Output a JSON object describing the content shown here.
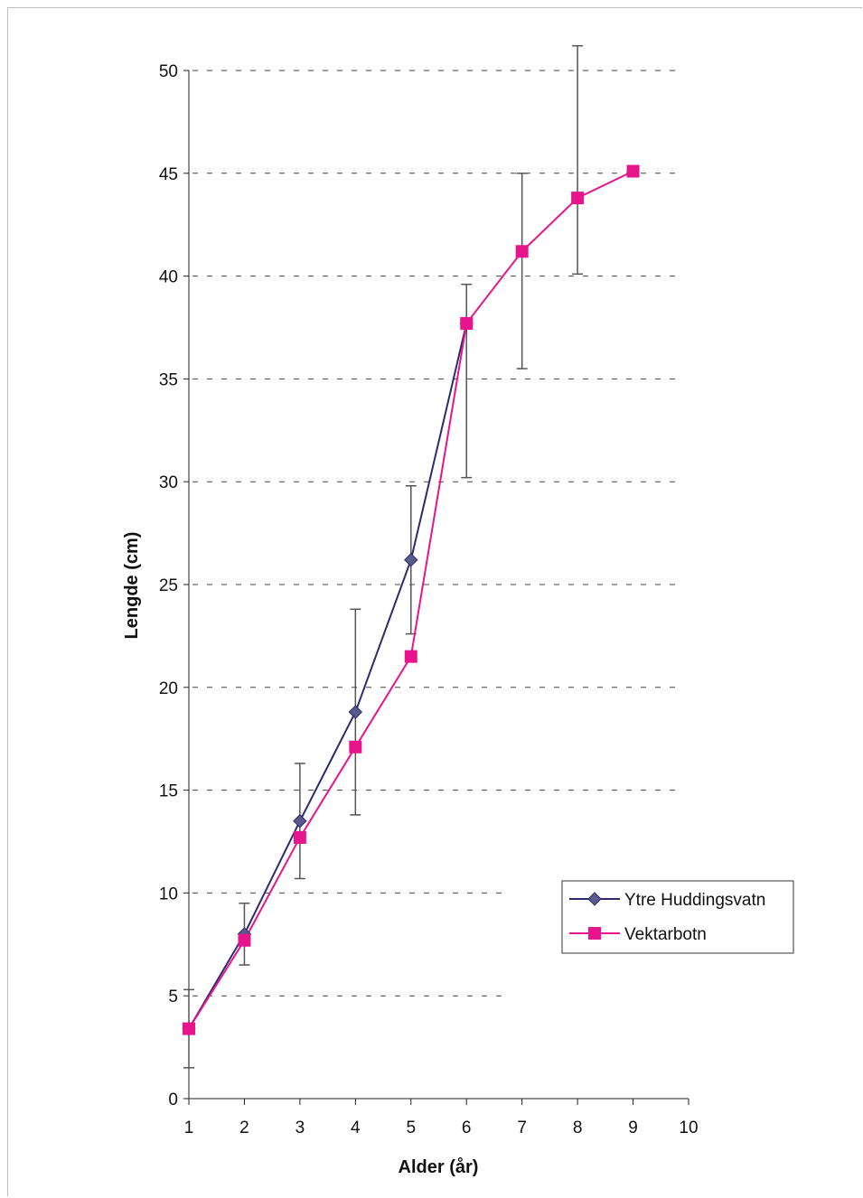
{
  "chart_data": {
    "type": "line",
    "xlabel": "Alder (år)",
    "ylabel": "Lengde (cm)",
    "xlim": [
      1,
      10
    ],
    "ylim": [
      0,
      50
    ],
    "x_ticks": [
      1,
      2,
      3,
      4,
      5,
      6,
      7,
      8,
      9,
      10
    ],
    "y_ticks": [
      0,
      5,
      10,
      15,
      20,
      25,
      30,
      35,
      40,
      45,
      50
    ],
    "grid": "horizontal dashed",
    "legend_position": "bottom-right",
    "series": [
      {
        "name": "Ytre Huddingsvatn",
        "color": "#2e2a6e",
        "marker": "diamond",
        "x": [
          1,
          2,
          3,
          4,
          5,
          6
        ],
        "y": [
          3.4,
          8.0,
          13.5,
          18.8,
          26.2,
          37.7
        ],
        "error_upper": [
          5.3,
          9.5,
          16.3,
          23.8,
          29.8,
          39.6
        ],
        "error_lower": [
          1.5,
          6.5,
          10.7,
          13.8,
          22.6,
          30.2
        ]
      },
      {
        "name": "Vektarbotn",
        "color": "#e8148c",
        "marker": "square",
        "x": [
          1,
          2,
          3,
          4,
          5,
          6,
          7,
          8,
          9
        ],
        "y": [
          3.4,
          7.7,
          12.7,
          17.1,
          21.5,
          37.7,
          41.2,
          43.8,
          45.1
        ],
        "error_upper": [
          null,
          null,
          null,
          null,
          null,
          null,
          45.0,
          51.2,
          null
        ],
        "error_lower": [
          null,
          null,
          null,
          null,
          null,
          null,
          35.5,
          40.1,
          null
        ]
      }
    ]
  }
}
